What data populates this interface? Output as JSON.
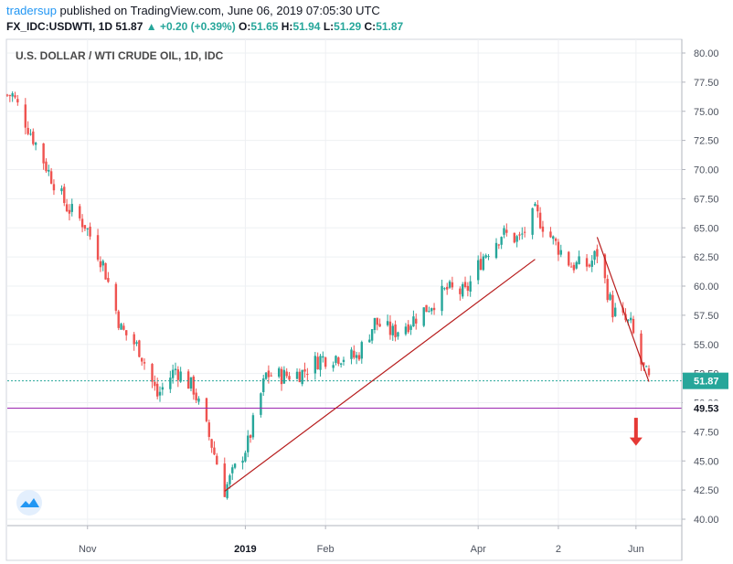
{
  "header": {
    "user": "tradersup",
    "published_text": "published on TradingView.com, June 06, 2019 07:05:30 UTC",
    "symbol": "FX_IDC:USDWTI, 1D",
    "last": "51.87",
    "change": "+0.20 (+0.39%)",
    "o_label": "O:",
    "o_value": "51.65",
    "h_label": "H:",
    "h_value": "51.94",
    "l_label": "L:",
    "l_value": "51.29",
    "c_label": "C:",
    "c_value": "51.87"
  },
  "colors": {
    "up": "#26a69a",
    "down": "#ef5350",
    "trendline": "#b71c1c",
    "support_line": "#9c27b0",
    "last_price_line": "#26a69a",
    "arrow": "#e53935",
    "grid": "#eef0f3",
    "axis": "#b2b5be"
  },
  "chart_data": {
    "type": "candlestick",
    "title": "U.S. DOLLAR / WTI CRUDE OIL, 1D, IDC",
    "ylim": [
      39.5,
      81.0
    ],
    "y_ticks": [
      "80.00",
      "77.50",
      "75.00",
      "72.50",
      "70.00",
      "67.50",
      "65.00",
      "62.50",
      "60.00",
      "57.50",
      "55.00",
      "52.50",
      "50.00",
      "47.50",
      "45.00",
      "42.50",
      "40.00"
    ],
    "x_ticks": [
      {
        "label": "Nov",
        "bold": false
      },
      {
        "label": "2019",
        "bold": true
      },
      {
        "label": "Feb",
        "bold": false
      },
      {
        "label": "Apr",
        "bold": false
      },
      {
        "label": "2",
        "bold": false
      },
      {
        "label": "Jun",
        "bold": false
      }
    ],
    "last_price": 51.87,
    "last_price_label": "51.87",
    "support_level": 49.53,
    "support_label": "49.53",
    "trendlines": [
      {
        "from": {
          "date": "2018-12-24",
          "value": 42.4
        },
        "to": {
          "date": "2019-04-23",
          "value": 62.3
        }
      },
      {
        "from": {
          "date": "2019-05-17",
          "value": 64.2
        },
        "to": {
          "date": "2019-06-06",
          "value": 51.8
        }
      }
    ],
    "arrow": {
      "date": "2019-06-01",
      "from": 48.7,
      "to": 46.3
    },
    "close_series": [
      {
        "date": "2018-10-03",
        "close": 76.4
      },
      {
        "date": "2018-10-10",
        "close": 73.2
      },
      {
        "date": "2018-10-17",
        "close": 69.8
      },
      {
        "date": "2018-10-24",
        "close": 66.8
      },
      {
        "date": "2018-10-31",
        "close": 65.3
      },
      {
        "date": "2018-11-07",
        "close": 61.9
      },
      {
        "date": "2018-11-14",
        "close": 56.3
      },
      {
        "date": "2018-11-21",
        "close": 54.6
      },
      {
        "date": "2018-11-28",
        "close": 50.6
      },
      {
        "date": "2018-12-05",
        "close": 52.9
      },
      {
        "date": "2018-12-12",
        "close": 51.2
      },
      {
        "date": "2018-12-19",
        "close": 46.4
      },
      {
        "date": "2018-12-24",
        "close": 42.5
      },
      {
        "date": "2019-01-02",
        "close": 46.5
      },
      {
        "date": "2019-01-09",
        "close": 52.4
      },
      {
        "date": "2019-01-16",
        "close": 52.3
      },
      {
        "date": "2019-01-23",
        "close": 52.6
      },
      {
        "date": "2019-01-30",
        "close": 53.8
      },
      {
        "date": "2019-02-06",
        "close": 54.0
      },
      {
        "date": "2019-02-13",
        "close": 53.9
      },
      {
        "date": "2019-02-20",
        "close": 56.9
      },
      {
        "date": "2019-02-27",
        "close": 56.0
      },
      {
        "date": "2019-03-06",
        "close": 57.0
      },
      {
        "date": "2019-03-13",
        "close": 58.3
      },
      {
        "date": "2019-03-20",
        "close": 59.7
      },
      {
        "date": "2019-03-27",
        "close": 59.4
      },
      {
        "date": "2019-04-03",
        "close": 62.6
      },
      {
        "date": "2019-04-10",
        "close": 64.5
      },
      {
        "date": "2019-04-17",
        "close": 64.0
      },
      {
        "date": "2019-04-23",
        "close": 66.3
      },
      {
        "date": "2019-04-30",
        "close": 63.9
      },
      {
        "date": "2019-05-07",
        "close": 61.8
      },
      {
        "date": "2019-05-14",
        "close": 61.8
      },
      {
        "date": "2019-05-17",
        "close": 62.9
      },
      {
        "date": "2019-05-23",
        "close": 57.9
      },
      {
        "date": "2019-05-30",
        "close": 56.6
      },
      {
        "date": "2019-06-03",
        "close": 53.3
      },
      {
        "date": "2019-06-06",
        "close": 51.9
      }
    ]
  }
}
